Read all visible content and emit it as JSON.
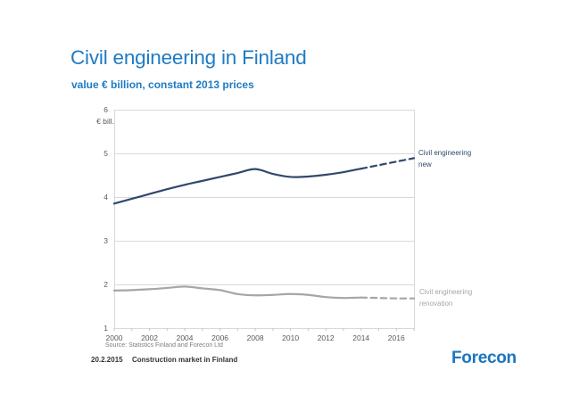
{
  "slide": {
    "title": "Civil engineering in Finland",
    "subtitle": "value € billion, constant 2013 prices",
    "source_note": "Source: Statistics Finland and Forecon Ltd",
    "footer_date": "20.2.2015",
    "footer_title": "Construction market in Finland",
    "logo_text": "Forecon"
  },
  "colors": {
    "title_blue": "#1e7bc4",
    "logo_blue": "#1a75bf",
    "series_new": "#31486b",
    "series_renovation": "#a6a6a6",
    "grid": "#d9d9d9",
    "axis_text": "#595959"
  },
  "chart_data": {
    "type": "line",
    "title": "",
    "xlabel": "",
    "ylabel": "€ bill.",
    "x": [
      2000,
      2001,
      2002,
      2003,
      2004,
      2005,
      2006,
      2007,
      2008,
      2009,
      2010,
      2011,
      2012,
      2013,
      2014,
      2015,
      2016,
      2017
    ],
    "x_tick_labels": [
      "2000",
      "2002",
      "2004",
      "2006",
      "2008",
      "2010",
      "2012",
      "2014",
      "2016"
    ],
    "ylim": [
      1,
      6
    ],
    "y_ticks": [
      1,
      2,
      3,
      4,
      5,
      6
    ],
    "grid": true,
    "grid_color": "#d9d9d9",
    "tick_color": "#c6c6c6",
    "axis_text_color": "#595959",
    "legend_position": "right-of-line-ends",
    "forecast_style": "dashed after 2014",
    "series": [
      {
        "name": "Civil engineering new",
        "slug": "new",
        "label_lines": [
          "Civil engineering",
          "new"
        ],
        "color": "#31486b",
        "solid_until_index": 14,
        "values": [
          3.85,
          3.96,
          4.07,
          4.18,
          4.28,
          4.37,
          4.46,
          4.55,
          4.64,
          4.53,
          4.46,
          4.47,
          4.51,
          4.57,
          4.65,
          4.73,
          4.81,
          4.89
        ]
      },
      {
        "name": "Civil engineering renovation",
        "slug": "renovation",
        "label_lines": [
          "Civil engineering",
          "renovation"
        ],
        "color": "#a6a6a6",
        "solid_until_index": 14,
        "values": [
          1.86,
          1.87,
          1.89,
          1.92,
          1.95,
          1.91,
          1.87,
          1.78,
          1.75,
          1.76,
          1.78,
          1.76,
          1.71,
          1.69,
          1.7,
          1.69,
          1.68,
          1.68
        ]
      }
    ]
  }
}
